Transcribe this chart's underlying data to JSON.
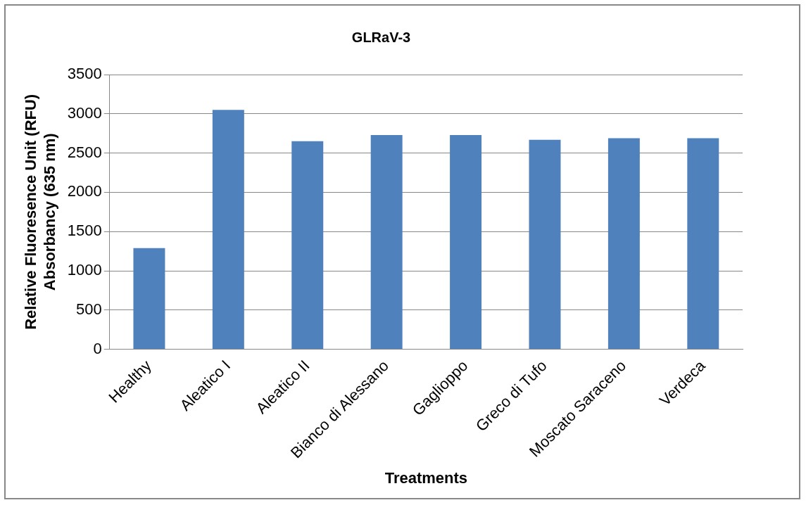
{
  "chart_data": {
    "type": "bar",
    "title": "GLRaV-3",
    "xlabel": "Treatments",
    "ylabel": "Relative Fluoresence Unit (RFU)\nAbsorbancy (635 nm)",
    "categories": [
      "Healthy",
      "Aleatico I",
      "Aleatico II",
      "Bianco di Alessano",
      "Gaglioppo",
      "Greco di Tufo",
      "Moscato Saraceno",
      "Verdeca"
    ],
    "values": [
      1290,
      3050,
      2650,
      2730,
      2730,
      2670,
      2690,
      2690
    ],
    "color": "#4f81bd",
    "ylim": [
      0,
      3500
    ],
    "yticks": [
      0,
      500,
      1000,
      1500,
      2000,
      2500,
      3000,
      3500
    ],
    "grid": "y",
    "legend": false
  }
}
